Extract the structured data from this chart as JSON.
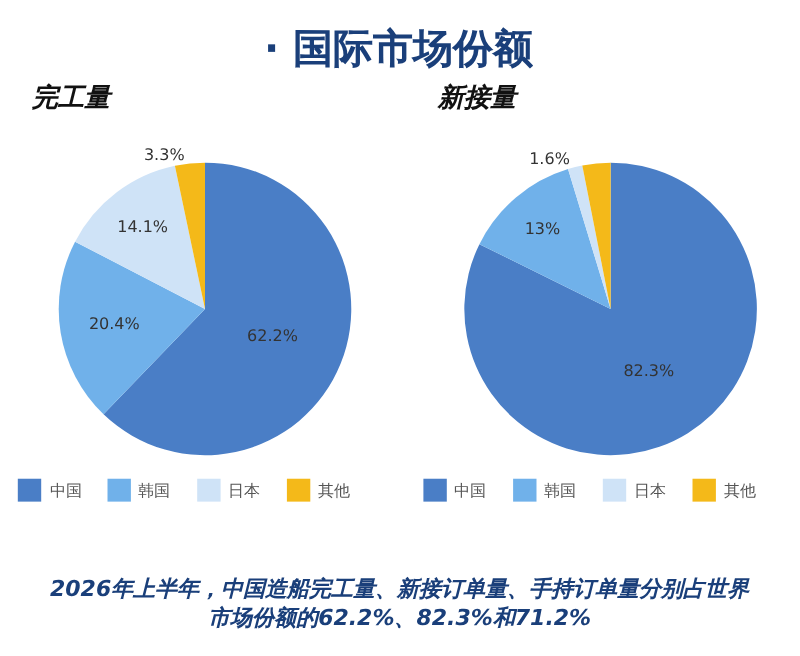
{
  "chart_data": [
    {
      "type": "pie",
      "title": "完工量",
      "categories": [
        "中国",
        "韩国",
        "日本",
        "其他"
      ],
      "values": [
        62.2,
        20.4,
        14.1,
        3.3
      ],
      "colors": [
        "#4a7ec6",
        "#70b1ea",
        "#cfe3f7",
        "#f4b919"
      ],
      "value_labels": [
        "62.2%",
        "20.4%",
        "14.1%",
        "3.3%"
      ],
      "legend": "bottom",
      "annotations": [
        "· 国际市场份额",
        "2026年上半年，中国造船完工量、新接订单量、手持订单量分别占世界市场份额的62.2%、82.3%和71.2%"
      ]
    },
    {
      "type": "pie",
      "title": "新接量",
      "categories": [
        "中国",
        "韩国",
        "日本",
        "其他"
      ],
      "values": [
        82.3,
        13,
        1.6,
        3.1
      ],
      "colors": [
        "#4a7ec6",
        "#70b1ea",
        "#cfe3f7",
        "#f4b919"
      ],
      "value_labels": [
        "82.3%",
        "13%",
        "1.6%",
        null
      ],
      "legend": "bottom"
    }
  ]
}
